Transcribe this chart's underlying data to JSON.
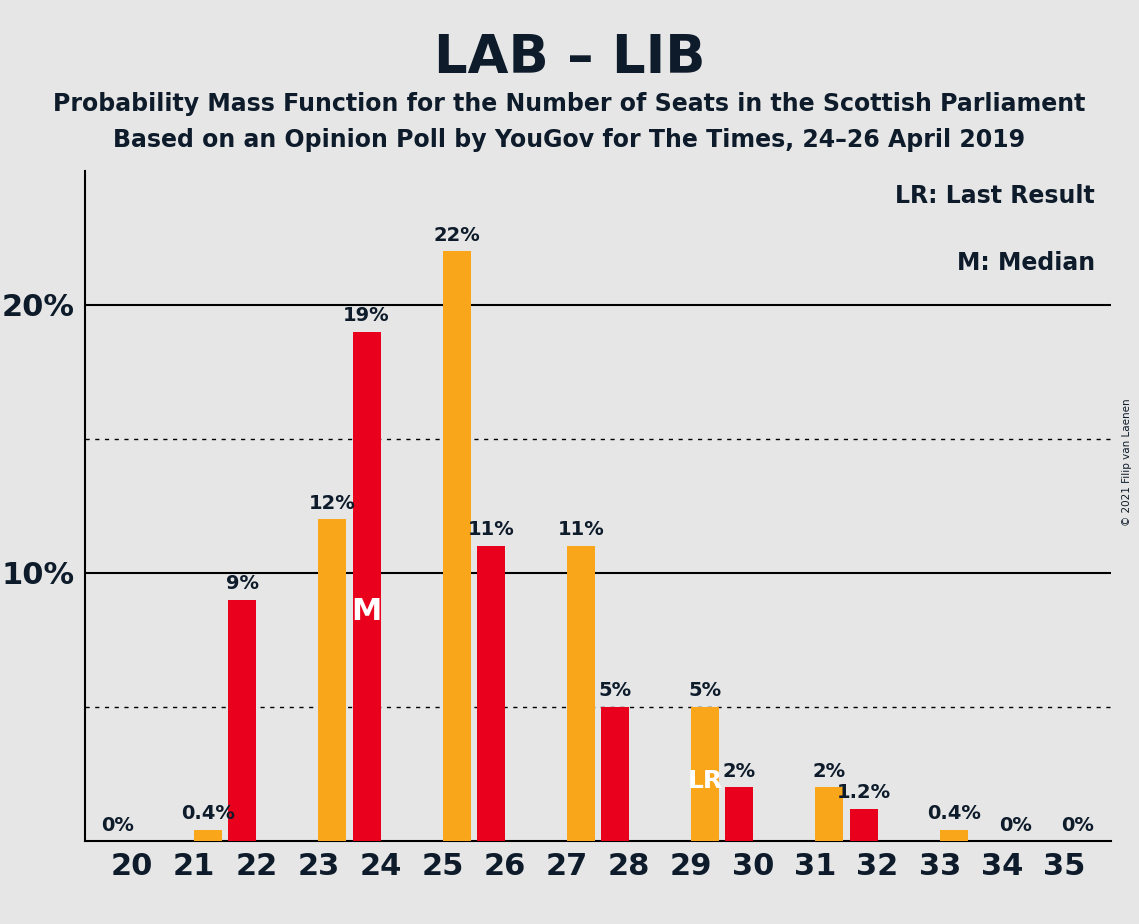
{
  "title": "LAB – LIB",
  "subtitle1": "Probability Mass Function for the Number of Seats in the Scottish Parliament",
  "subtitle2": "Based on an Opinion Poll by YouGov for The Times, 24–26 April 2019",
  "copyright": "© 2021 Filip van Laenen",
  "legend_lr": "LR: Last Result",
  "legend_m": "M: Median",
  "seats": [
    20,
    21,
    22,
    23,
    24,
    25,
    26,
    27,
    28,
    29,
    30,
    31,
    32,
    33,
    34,
    35
  ],
  "lab_values": [
    0.0,
    0.0,
    9.0,
    0.0,
    19.0,
    0.0,
    11.0,
    0.0,
    5.0,
    0.0,
    2.0,
    0.0,
    1.2,
    0.0,
    0.0,
    0.0
  ],
  "lib_values": [
    0.0,
    0.4,
    0.0,
    12.0,
    0.0,
    22.0,
    0.0,
    11.0,
    0.0,
    5.0,
    0.0,
    2.0,
    0.0,
    0.4,
    0.0,
    0.0
  ],
  "lab_color": "#E8001C",
  "lib_color": "#FAA61A",
  "background_color": "#E6E6E6",
  "bar_width": 0.45,
  "median_seat": 24,
  "lr_seat": 29,
  "ylim_max": 25,
  "solid_yticks": [
    10,
    20
  ],
  "dotted_yticks": [
    5,
    15
  ],
  "title_fontsize": 38,
  "subtitle_fontsize": 17,
  "bar_label_fontsize": 14,
  "tick_fontsize": 22,
  "legend_fontsize": 17,
  "text_color": "#0d1b2a",
  "lab_zero_show": [
    20
  ],
  "lib_zero_show": [
    34,
    35
  ]
}
